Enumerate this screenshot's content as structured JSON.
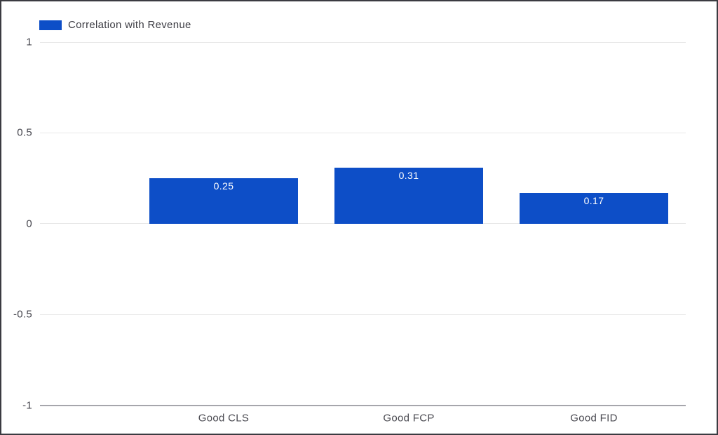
{
  "chart_data": {
    "type": "bar",
    "title": "",
    "categories": [
      "Good CLS",
      "Good FCP",
      "Good FID"
    ],
    "series": [
      {
        "name": "Correlation with Revenue",
        "values": [
          0.25,
          0.31,
          0.17
        ],
        "value_labels": [
          "0.25",
          "0.31",
          "0.17"
        ],
        "color": "#0d4ec7"
      }
    ],
    "ylim": [
      -1,
      1
    ],
    "yticks": [
      {
        "value": 1,
        "label": "1"
      },
      {
        "value": 0.5,
        "label": "0.5"
      },
      {
        "value": 0,
        "label": "0"
      },
      {
        "value": -0.5,
        "label": "-0.5"
      },
      {
        "value": -1,
        "label": "-1"
      }
    ],
    "legend": {
      "position": "top-left",
      "entries": [
        "Correlation with Revenue"
      ]
    },
    "grid": true,
    "xlabel": "",
    "ylabel": ""
  },
  "colors": {
    "bar": "#0d4ec7",
    "gridline": "#e7e7e7",
    "axis_line": "#a6a6ac",
    "tick_text": "#46464e",
    "category_text": "#4b4b52",
    "value_text": "#ffffff",
    "legend_text": "#3d3d44",
    "frame_border": "#3b3b41",
    "background": "#ffffff"
  }
}
